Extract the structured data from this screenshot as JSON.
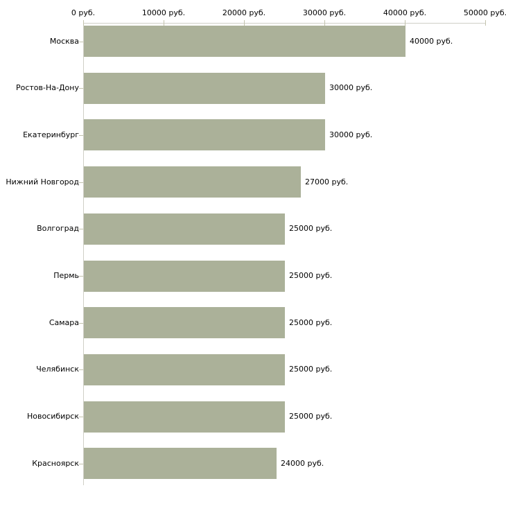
{
  "chart_data": {
    "type": "bar",
    "orientation": "horizontal",
    "title": "",
    "xlabel": "",
    "ylabel": "",
    "categories": [
      "Москва",
      "Ростов-На-Дону",
      "Екатеринбург",
      "Нижний Новгород",
      "Волгоград",
      "Пермь",
      "Самара",
      "Челябинск",
      "Новосибирск",
      "Красноярск"
    ],
    "values": [
      40000,
      30000,
      30000,
      27000,
      25000,
      25000,
      25000,
      25000,
      25000,
      24000
    ],
    "value_labels": [
      "40000 руб.",
      "30000 руб.",
      "30000 руб.",
      "27000 руб.",
      "25000 руб.",
      "25000 руб.",
      "25000 руб.",
      "25000 руб.",
      "25000 руб.",
      "24000 руб."
    ],
    "x_axis": {
      "position": "top",
      "min": 0,
      "max": 50000,
      "ticks": [
        0,
        10000,
        20000,
        30000,
        40000,
        50000
      ],
      "tick_labels": [
        "0 руб.",
        "10000 руб.",
        "20000 руб.",
        "30000 руб.",
        "40000 руб.",
        "50000 руб."
      ]
    },
    "grid": false,
    "legend": false,
    "colors": {
      "bar": "#abb199",
      "axis": "#cfcfc6",
      "tick": "#c3c3ad",
      "text": "#000000",
      "background": "#ffffff"
    }
  }
}
